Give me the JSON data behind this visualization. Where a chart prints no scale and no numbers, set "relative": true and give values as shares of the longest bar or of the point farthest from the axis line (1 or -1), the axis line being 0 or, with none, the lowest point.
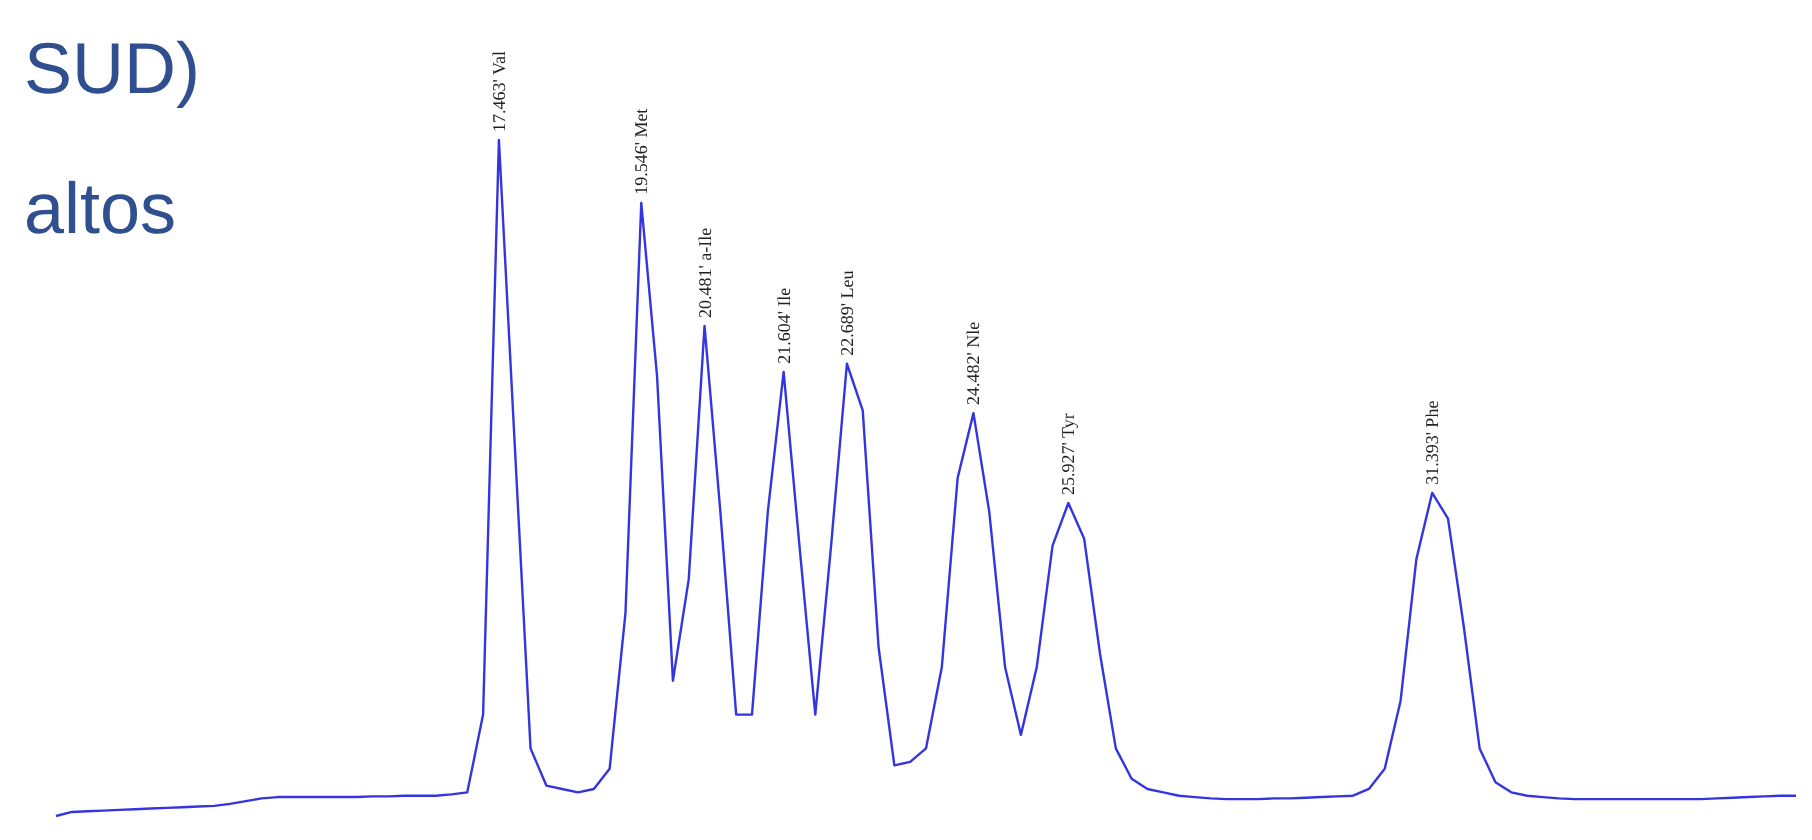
{
  "chart_data": {
    "type": "line",
    "relative": true,
    "marker": "none",
    "categories": [
      null,
      null,
      null,
      null,
      null,
      null,
      null,
      null,
      null,
      null,
      null,
      null,
      null,
      null,
      null,
      null,
      null,
      null,
      null,
      null,
      null,
      null,
      null,
      null,
      null,
      null,
      null,
      null,
      null,
      null,
      null,
      null,
      null,
      null,
      null,
      null,
      null,
      null,
      null,
      null,
      null,
      null,
      null,
      null,
      null,
      null,
      null,
      null,
      null,
      null,
      null,
      null,
      null,
      null,
      null,
      null,
      null,
      null,
      null,
      null,
      null,
      null,
      null,
      null,
      null,
      null,
      null,
      null,
      null,
      null,
      null,
      null,
      null,
      null,
      null,
      null,
      null,
      null,
      null,
      null,
      null,
      null,
      null,
      null,
      null,
      null,
      null,
      null,
      null,
      null,
      null,
      null,
      null,
      null,
      null,
      null,
      null,
      null,
      null,
      null,
      null,
      null,
      null,
      null,
      null,
      null,
      null,
      null,
      null,
      null,
      null
    ],
    "series": [
      {
        "color": "#3535e0",
        "values": [
          0,
          0.006,
          0.007,
          0.008,
          0.009,
          0.01,
          0.011,
          0.012,
          0.013,
          0.014,
          0.015,
          0.018,
          0.022,
          0.026,
          0.028,
          0.028,
          0.028,
          0.028,
          0.028,
          0.028,
          0.029,
          0.029,
          0.03,
          0.03,
          0.03,
          0.032,
          0.035,
          0.15,
          1.0,
          0.55,
          0.1,
          0.045,
          0.04,
          0.035,
          0.04,
          0.07,
          0.3,
          0.907,
          0.65,
          0.2,
          0.35,
          0.725,
          0.45,
          0.15,
          0.15,
          0.45,
          0.657,
          0.4,
          0.15,
          0.4,
          0.669,
          0.6,
          0.25,
          0.075,
          0.08,
          0.1,
          0.22,
          0.5,
          0.596,
          0.45,
          0.22,
          0.12,
          0.22,
          0.4,
          0.463,
          0.41,
          0.24,
          0.1,
          0.055,
          0.04,
          0.035,
          0.03,
          0.028,
          0.026,
          0.025,
          0.025,
          0.025,
          0.026,
          0.026,
          0.027,
          0.028,
          0.029,
          0.03,
          0.04,
          0.07,
          0.17,
          0.38,
          0.478,
          0.44,
          0.28,
          0.1,
          0.05,
          0.035,
          0.03,
          0.028,
          0.026,
          0.025,
          0.025,
          0.025,
          0.025,
          0.025,
          0.025,
          0.025,
          0.025,
          0.025,
          0.026,
          0.027,
          0.028,
          0.029,
          0.03,
          0.03
        ],
        "name": null
      }
    ],
    "title": "SUD)",
    "subtitle": "altos",
    "annotations": [
      "17.463' Val",
      "19.546' Met",
      "20.481' a-Ile",
      "21.604' Ile",
      "22.689' Leu",
      "24.482' Nle",
      "25.927' Tyr",
      "31.393' Phe"
    ]
  }
}
